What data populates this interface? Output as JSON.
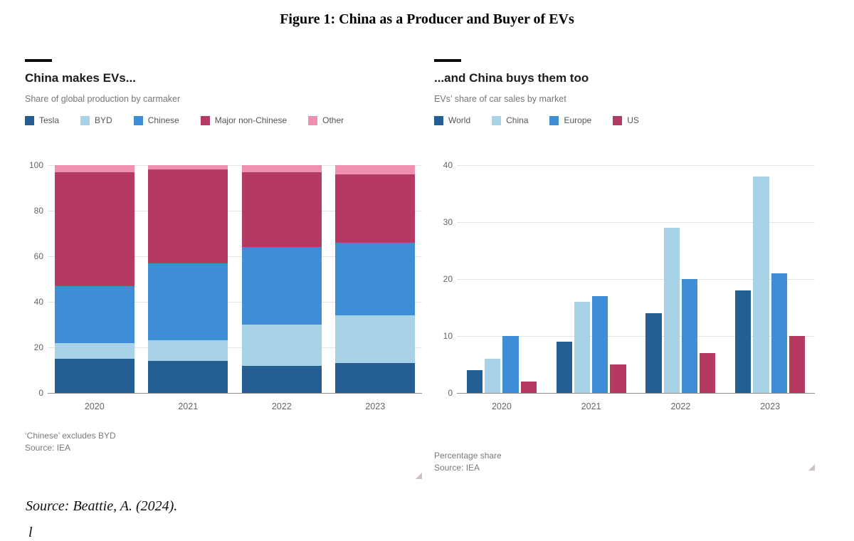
{
  "figure": {
    "title": "Figure 1: China as a Producer and Buyer of EVs",
    "source_line": "Source: Beattie, A. (2024).",
    "cropped_text_fragment": "l"
  },
  "panels": [
    {
      "title": "China makes EVs...",
      "subtitle": "Share of global production by carmaker",
      "note": "‘Chinese’ excludes BYD",
      "source": "Source: IEA"
    },
    {
      "title": "...and China buys them too",
      "subtitle": "EVs’ share of car sales by market",
      "note": "Percentage share",
      "source": "Source: IEA"
    }
  ],
  "colors": {
    "dark_blue": "#255e93",
    "light_blue": "#a8d3e6",
    "mid_blue": "#3f8dd4",
    "claret": "#b53a62",
    "pink": "#ef8fb1",
    "gridline": "#e3e3e3",
    "axis_line": "#8c8c8c",
    "kicker": "#0d0d0d"
  },
  "chart_data": [
    {
      "type": "bar",
      "variant": "stacked",
      "title": "China makes EVs...",
      "subtitle": "Share of global production by carmaker",
      "categories": [
        "2020",
        "2021",
        "2022",
        "2023"
      ],
      "series": [
        {
          "name": "Tesla",
          "color": "#255e93",
          "values": [
            15,
            14,
            12,
            13
          ]
        },
        {
          "name": "BYD",
          "color": "#a8d3e6",
          "values": [
            7,
            9,
            18,
            21
          ]
        },
        {
          "name": "Chinese",
          "color": "#3f8dd4",
          "values": [
            25,
            34,
            34,
            32
          ]
        },
        {
          "name": "Major non-Chinese",
          "color": "#b53a62",
          "values": [
            50,
            41,
            33,
            30
          ]
        },
        {
          "name": "Other",
          "color": "#ef8fb1",
          "values": [
            3,
            2,
            3,
            4
          ]
        }
      ],
      "xlabel": "",
      "ylabel": "",
      "ylim": [
        0,
        100
      ],
      "yticks": [
        0,
        20,
        40,
        60,
        80,
        100
      ],
      "grid": true,
      "legend_position": "top"
    },
    {
      "type": "bar",
      "variant": "grouped",
      "title": "...and China buys them too",
      "subtitle": "EVs' share of car sales by market",
      "categories": [
        "2020",
        "2021",
        "2022",
        "2023"
      ],
      "series": [
        {
          "name": "World",
          "color": "#255e93",
          "values": [
            4,
            9,
            14,
            18
          ]
        },
        {
          "name": "China",
          "color": "#a8d3e6",
          "values": [
            6,
            16,
            29,
            38
          ]
        },
        {
          "name": "Europe",
          "color": "#3f8dd4",
          "values": [
            10,
            17,
            20,
            21
          ]
        },
        {
          "name": "US",
          "color": "#b53a62",
          "values": [
            2,
            5,
            7,
            10
          ]
        }
      ],
      "xlabel": "",
      "ylabel": "Percentage share",
      "ylim": [
        0,
        40
      ],
      "yticks": [
        0,
        10,
        20,
        30,
        40
      ],
      "grid": true,
      "legend_position": "top"
    }
  ]
}
